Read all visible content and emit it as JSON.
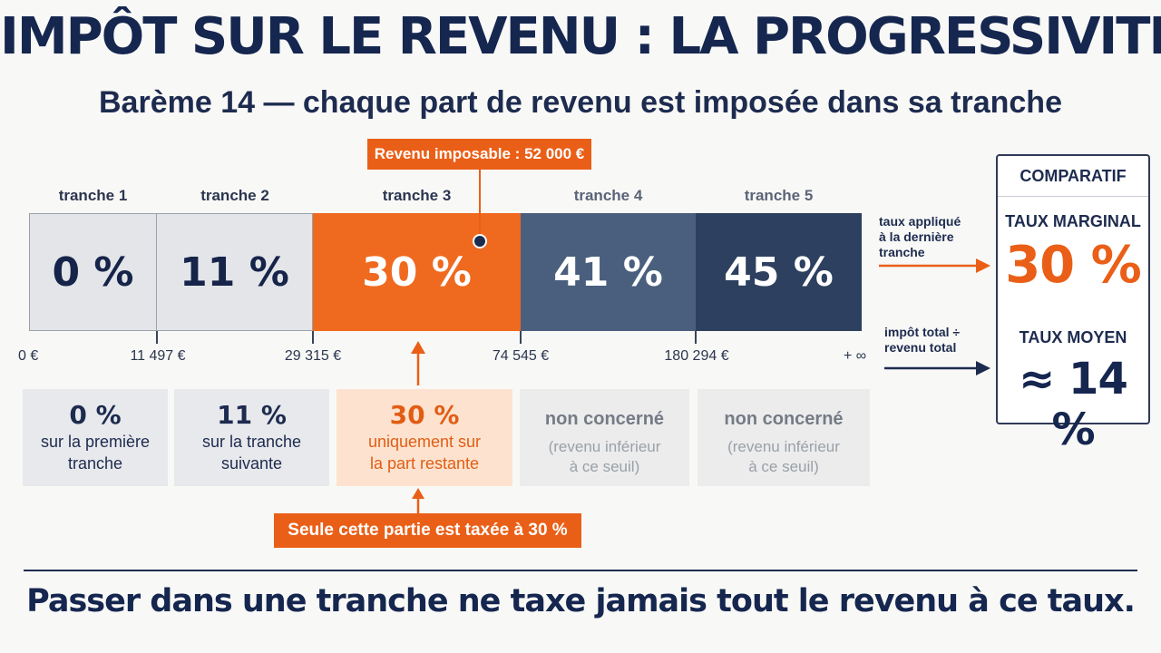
{
  "header": {
    "title": "IMPÔT SUR LE REVENU : LA PROGRESSIVITÉ",
    "subtitle": "Barème 14 — chaque part de revenu est imposée dans sa tranche"
  },
  "callout_top": "Revenu imposable : 52 000 €",
  "tranches": [
    {
      "label": "tranche 1",
      "rate": "0 %"
    },
    {
      "label": "tranche 2",
      "rate": "11 %"
    },
    {
      "label": "tranche 3",
      "rate": "30 %"
    },
    {
      "label": "tranche 4",
      "rate": "41 %"
    },
    {
      "label": "tranche 5",
      "rate": "45 %"
    }
  ],
  "thresholds": [
    "0 €",
    "11 497 €",
    "29 315 €",
    "74 545 €",
    "180 294 €",
    "+ ∞"
  ],
  "details": [
    {
      "big": "0 %",
      "line1": "sur la première",
      "line2": "tranche"
    },
    {
      "big": "11 %",
      "line1": "sur la tranche",
      "line2": "suivante"
    },
    {
      "big": "30 %",
      "line1": "uniquement sur",
      "line2": "la part restante"
    },
    {
      "big": "non concerné",
      "line1": "(revenu inférieur",
      "line2": "à ce seuil)"
    },
    {
      "big": "non concerné",
      "line1": "(revenu inférieur",
      "line2": "à ce seuil)"
    }
  ],
  "callout_bottom": "Seule cette partie est taxée à 30 %",
  "side_notes": {
    "marginal": [
      "taux appliqué",
      "à la dernière",
      "tranche"
    ],
    "average": [
      "impôt total ÷",
      "revenu total"
    ]
  },
  "comparatif": {
    "title": "COMPARATIF",
    "marginal_label": "TAUX MARGINAL",
    "marginal_value": "30 %",
    "average_label": "TAUX MOYEN",
    "average_value": "≈ 14 %"
  },
  "footer": "Passer dans une tranche ne taxe jamais tout le revenu à ce taux.",
  "colors": {
    "navy": "#15264f",
    "orange": "#ef6a1f"
  }
}
